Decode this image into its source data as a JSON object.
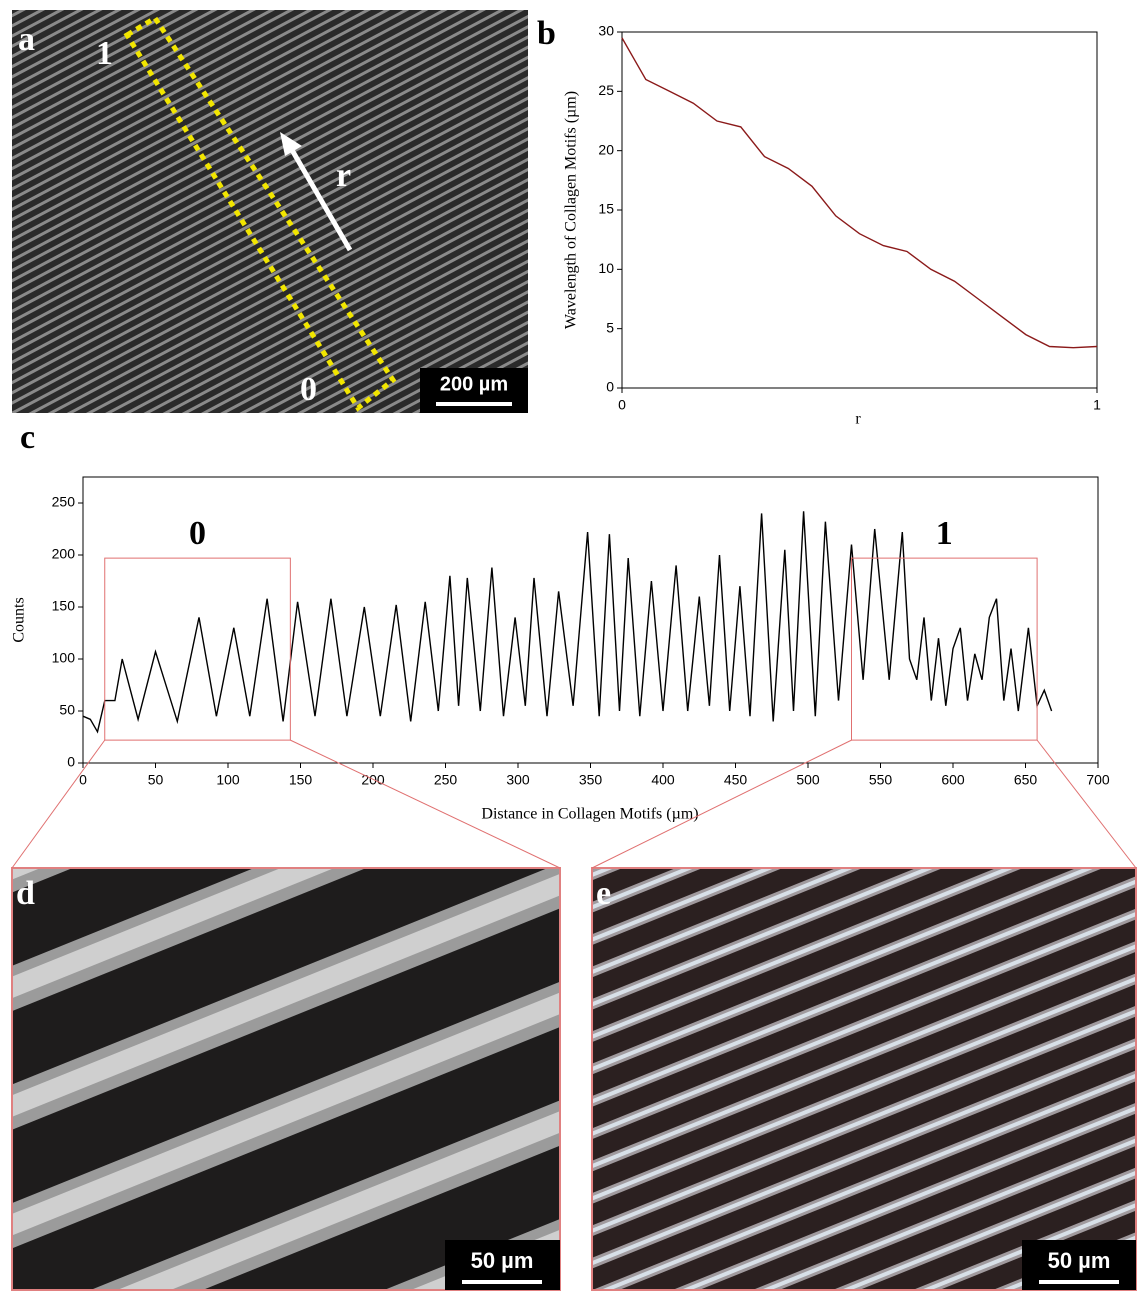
{
  "chart_data": [
    {
      "type": "line",
      "label": "b",
      "x_label": "r",
      "y_label": "Wavelength of Collagen Motifs (µm)",
      "x": [
        0,
        0.05,
        0.1,
        0.15,
        0.2,
        0.25,
        0.3,
        0.35,
        0.4,
        0.45,
        0.5,
        0.55,
        0.6,
        0.65,
        0.7,
        0.75,
        0.8,
        0.85,
        0.9,
        0.95,
        1
      ],
      "values": [
        29.5,
        26,
        25,
        24,
        22.5,
        22,
        19.5,
        18.5,
        17,
        14.5,
        13,
        12,
        11.5,
        10,
        9,
        7.5,
        6,
        4.5,
        3.5,
        3.4,
        3.5
      ],
      "color": "#8b1a1a",
      "xlim": [
        0,
        1
      ],
      "ylim": [
        0,
        30
      ],
      "xticks": [
        0,
        1
      ],
      "yticks": [
        0,
        5,
        10,
        15,
        20,
        25,
        30
      ]
    },
    {
      "type": "line",
      "label": "c",
      "x_label": "Distance in Collagen Motifs (µm)",
      "y_label": "Counts",
      "x": [
        0,
        5,
        10,
        15,
        22,
        27,
        38,
        50,
        65,
        80,
        92,
        104,
        115,
        127,
        138,
        148,
        160,
        171,
        182,
        194,
        205,
        216,
        226,
        236,
        245,
        253,
        259,
        265,
        274,
        282,
        290,
        298,
        305,
        311,
        320,
        328,
        338,
        348,
        356,
        363,
        370,
        376,
        384,
        392,
        400,
        409,
        417,
        425,
        432,
        439,
        446,
        453,
        460,
        468,
        476,
        484,
        490,
        497,
        505,
        512,
        521,
        530,
        538,
        546,
        556,
        565,
        570,
        575,
        580,
        585,
        590,
        595,
        600,
        605,
        610,
        615,
        620,
        625,
        630,
        635,
        640,
        645,
        652,
        658,
        663,
        668
      ],
      "values": [
        45,
        42,
        30,
        60,
        60,
        100,
        42,
        107,
        40,
        140,
        45,
        130,
        45,
        158,
        40,
        155,
        45,
        158,
        45,
        150,
        45,
        152,
        40,
        155,
        50,
        180,
        55,
        178,
        50,
        188,
        45,
        140,
        55,
        178,
        45,
        165,
        55,
        222,
        45,
        220,
        50,
        197,
        45,
        175,
        50,
        190,
        50,
        160,
        55,
        200,
        50,
        170,
        45,
        240,
        40,
        205,
        50,
        242,
        45,
        232,
        60,
        210,
        80,
        225,
        80,
        222,
        100,
        80,
        140,
        60,
        120,
        55,
        110,
        130,
        60,
        105,
        80,
        140,
        158,
        60,
        110,
        50,
        130,
        55,
        70,
        50
      ],
      "color": "#000000",
      "xlim": [
        0,
        700
      ],
      "ylim": [
        0,
        275
      ],
      "xticks": [
        0,
        50,
        100,
        150,
        200,
        250,
        300,
        350,
        400,
        450,
        500,
        550,
        600,
        650,
        700
      ],
      "yticks": [
        0,
        50,
        100,
        150,
        200,
        250
      ],
      "regions": [
        {
          "label": "0",
          "x": [
            15,
            143
          ],
          "y": [
            22,
            197
          ]
        },
        {
          "label": "1",
          "x": [
            530,
            658
          ],
          "y": [
            22,
            197
          ]
        }
      ],
      "region_color": "#e07070"
    }
  ],
  "images": [
    {
      "label": "a",
      "annotations": [
        "1",
        "r",
        "0"
      ],
      "scale_bar": "200 µm"
    },
    {
      "label": "d",
      "scale_bar": "50 µm"
    },
    {
      "label": "e",
      "scale_bar": "50 µm"
    }
  ]
}
